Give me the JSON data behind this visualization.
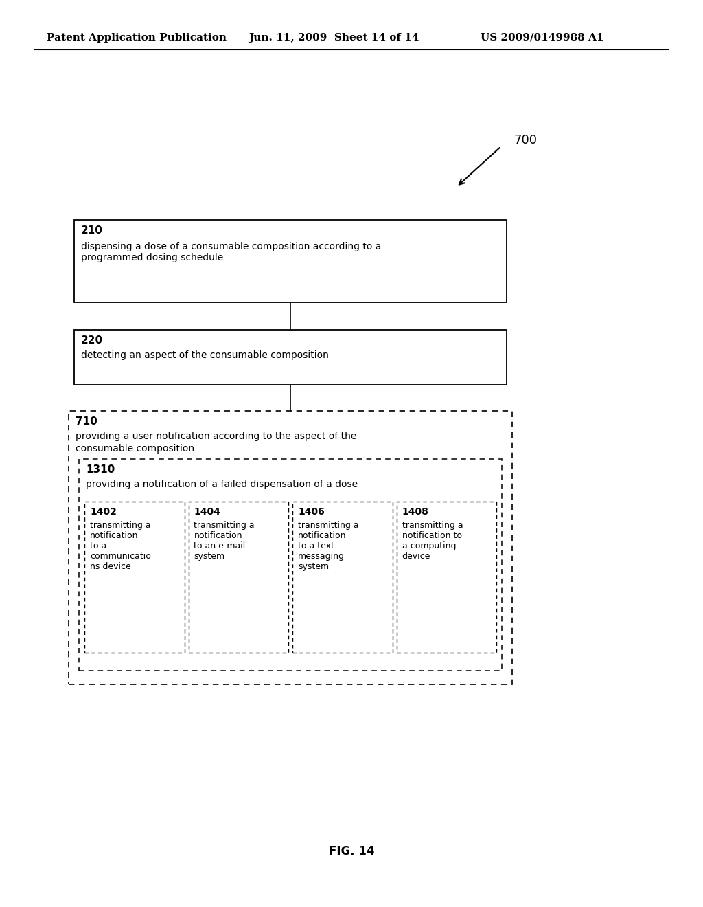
{
  "header_left": "Patent Application Publication",
  "header_mid": "Jun. 11, 2009  Sheet 14 of 14",
  "header_right": "US 2009/0149988 A1",
  "fig_label": "700",
  "fig_caption": "FIG. 14",
  "box210_id": "210",
  "box210_text": "dispensing a dose of a consumable composition according to a\nprogrammed dosing schedule",
  "box220_id": "220",
  "box220_text": "detecting an aspect of the consumable composition",
  "box710_id": "710",
  "box710_line1": "providing a user notification according to the aspect of the",
  "box710_line2": "consumable composition",
  "box1310_id": "1310",
  "box1310_text": "providing a notification of a failed dispensation of a dose",
  "box1402_id": "1402",
  "box1402_text": "transmitting a\nnotification\nto a\ncommunicatio\nns device",
  "box1404_id": "1404",
  "box1404_text": "transmitting a\nnotification\nto an e-mail\nsystem",
  "box1406_id": "1406",
  "box1406_text": "transmitting a\nnotification\nto a text\nmessaging\nsystem",
  "box1408_id": "1408",
  "box1408_text": "transmitting a\nnotification to\na computing\ndevice",
  "bg_color": "#ffffff",
  "text_color": "#000000"
}
